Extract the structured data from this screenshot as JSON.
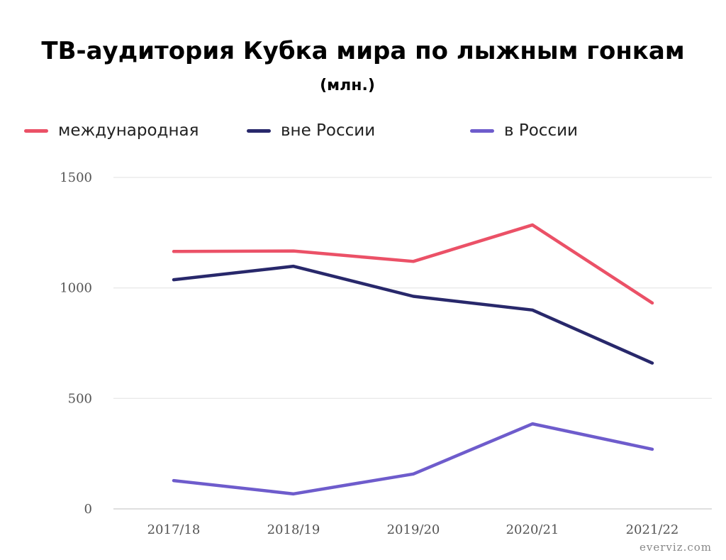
{
  "chart_data": {
    "type": "line",
    "title": "ТВ-аудитория Кубка мира по лыжным гонкам",
    "subtitle": "(млн.)",
    "categories": [
      "2017/18",
      "2018/19",
      "2019/20",
      "2020/21",
      "2021/22"
    ],
    "series": [
      {
        "name": "международная",
        "color": "#eb5167",
        "values": [
          1165,
          1167,
          1120,
          1285,
          932
        ]
      },
      {
        "name": "вне России",
        "color": "#28286b",
        "values": [
          1037,
          1098,
          962,
          900,
          660
        ]
      },
      {
        "name": "в России",
        "color": "#6e5ccc",
        "values": [
          128,
          68,
          158,
          385,
          270
        ]
      }
    ],
    "ylim": [
      0,
      1500
    ],
    "yticks": [
      0,
      500,
      1000,
      1500
    ],
    "grid": true,
    "legend_position": "top-left",
    "xlabel": "",
    "ylabel": ""
  },
  "watermark": "everviz.com"
}
